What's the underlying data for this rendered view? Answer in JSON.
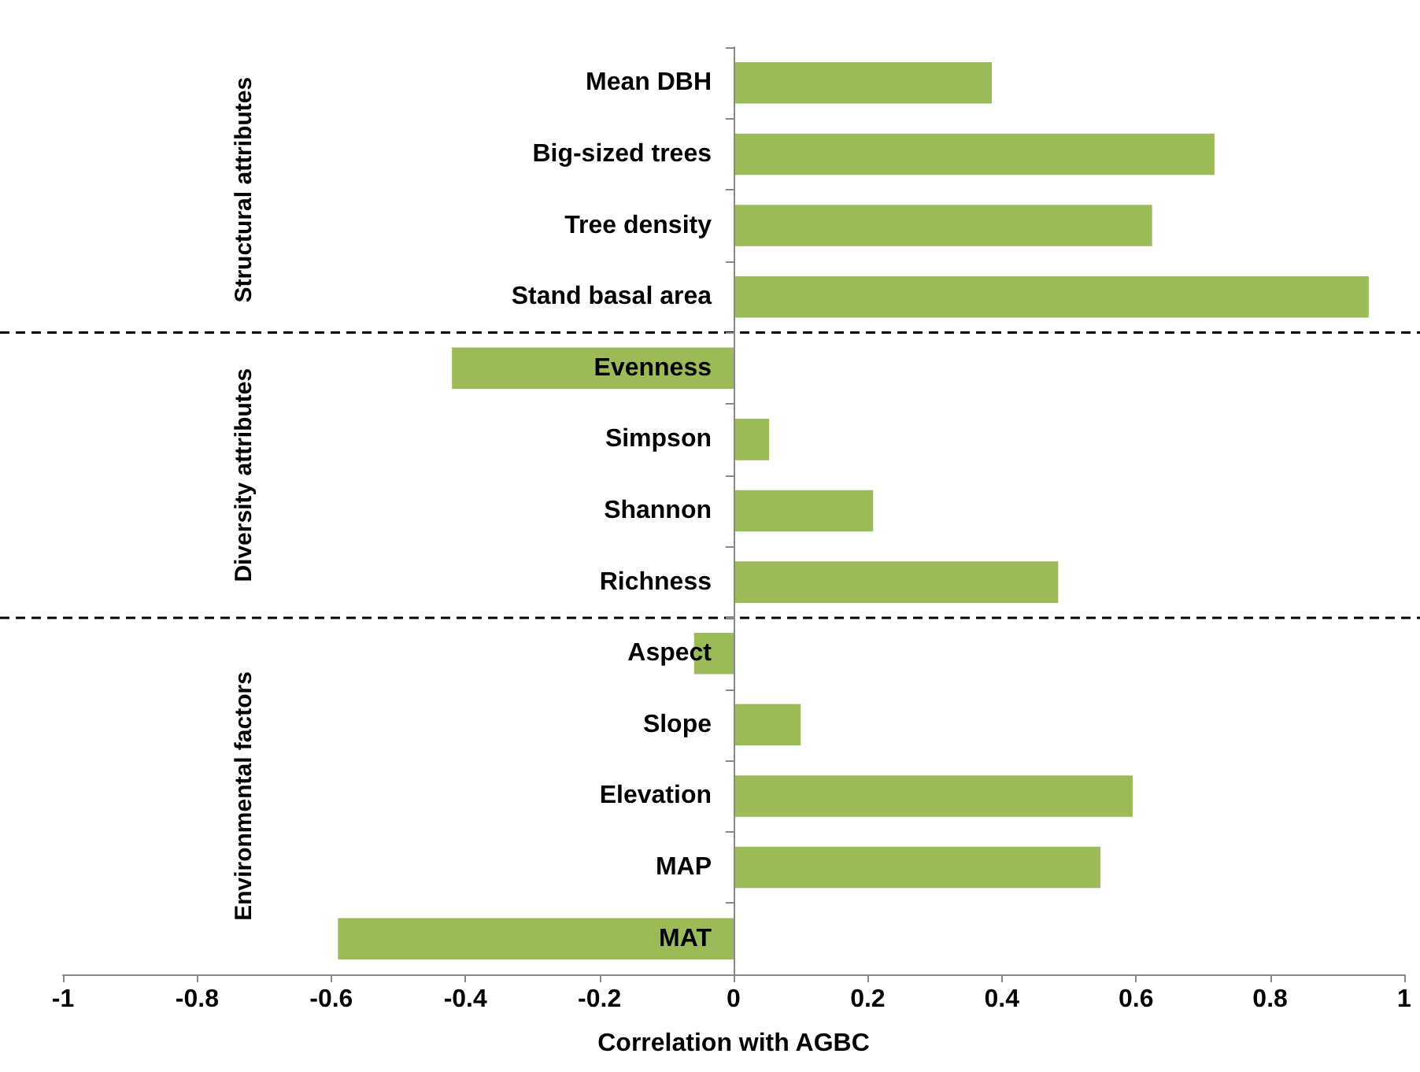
{
  "chart_data": {
    "type": "bar",
    "orientation": "horizontal",
    "xlabel": "Correlation with AGBC",
    "categories": [
      "Mean DBH",
      "Big-sized trees",
      "Tree density",
      "Stand basal area",
      "Evenness",
      "Simpson",
      "Shannon",
      "Richness",
      "Aspect",
      "Slope",
      "Elevation",
      "MAP",
      "MAT"
    ],
    "values": [
      0.385,
      0.717,
      0.624,
      0.947,
      -0.42,
      0.053,
      0.208,
      0.484,
      -0.059,
      0.1,
      0.595,
      0.547,
      -0.59
    ],
    "color": "#9bbb59",
    "xlim": [
      -1,
      1
    ],
    "xticks": [
      -1,
      -0.8,
      -0.6,
      -0.4,
      -0.2,
      0,
      0.2,
      0.4,
      0.6,
      0.8,
      1
    ],
    "grid": false,
    "annotations": [
      "Structural attributes",
      "Diversity attributes",
      "Environmental factors"
    ]
  }
}
